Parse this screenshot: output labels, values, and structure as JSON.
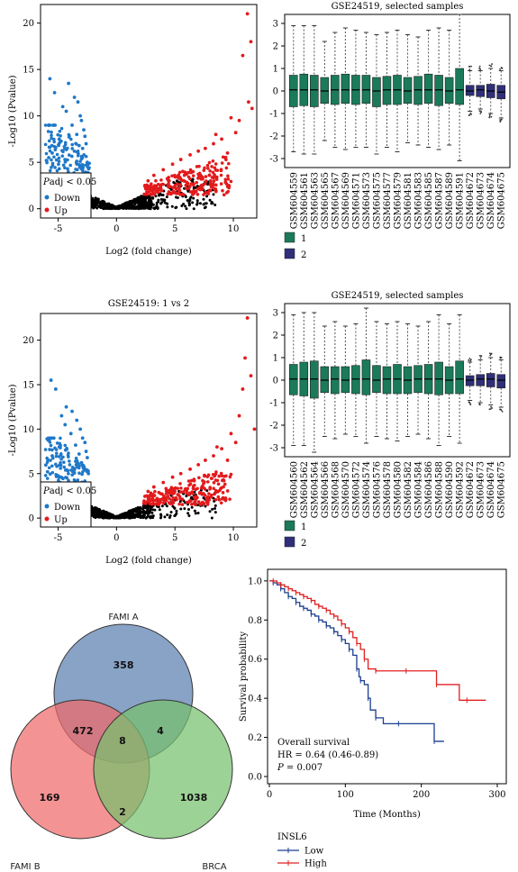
{
  "chart_data": [
    {
      "id": "volcano-1",
      "type": "scatter",
      "title": "GSE24519: 1 vs 2",
      "xlabel": "Log2 (fold change)",
      "ylabel": "-Log10 (Pvalue)",
      "xlim": [
        -6.5,
        12
      ],
      "ylim": [
        -1,
        22
      ],
      "xticks": [
        -5,
        0,
        5,
        10
      ],
      "yticks": [
        0,
        5,
        10,
        15,
        20
      ],
      "legend": {
        "title_italic": "P",
        "title_rest": "adj < 0.05",
        "entries": [
          {
            "name": "Down",
            "color": "#1f78c8"
          },
          {
            "name": "Up",
            "color": "#e31a1c"
          }
        ],
        "placement": "bottom-left"
      },
      "series": [
        {
          "name": "Down",
          "color": "#1f78c8",
          "x": [
            -5.7,
            -5.3,
            -4.1,
            -3.6,
            -3.3,
            -3.1,
            -3.0,
            -2.8,
            -2.7,
            -2.6,
            -4.6,
            -5.5,
            -3.4,
            -2.9,
            -4.9,
            -5.8,
            -3.8,
            -2.5,
            -3.2,
            -4.3
          ],
          "y": [
            14.0,
            12.5,
            13.5,
            12.0,
            11.5,
            10.0,
            9.5,
            8.5,
            7.8,
            7.0,
            11.0,
            6.0,
            8.0,
            6.5,
            7.5,
            5.5,
            9.0,
            5.0,
            6.8,
            10.5
          ]
        },
        {
          "name": "Up",
          "color": "#e31a1c",
          "x": [
            11.2,
            11.5,
            10.8,
            11.3,
            11.6,
            10.5,
            9.8,
            10.2,
            9.0,
            8.3,
            7.6,
            7.0,
            6.3,
            5.5,
            4.8,
            4.0,
            3.2,
            2.7,
            8.5,
            9.5
          ],
          "y": [
            21.0,
            18.0,
            16.5,
            11.5,
            10.8,
            9.5,
            9.8,
            8.2,
            7.5,
            7.0,
            6.5,
            6.2,
            5.8,
            5.3,
            4.8,
            4.2,
            3.6,
            3.0,
            8.0,
            6.0
          ]
        }
      ]
    },
    {
      "id": "box-1",
      "type": "box",
      "title": "GSE24519, selected samples",
      "ylim": [
        -3.4,
        3.4
      ],
      "yticks": [
        -3,
        -2,
        -1,
        0,
        1,
        2,
        3
      ],
      "categories": [
        "GSM604559",
        "GSM604561",
        "GSM604563",
        "GSM604565",
        "GSM604567",
        "GSM604569",
        "GSM604571",
        "GSM604573",
        "GSM604575",
        "GSM604577",
        "GSM604579",
        "GSM604581",
        "GSM604583",
        "GSM604585",
        "GSM604587",
        "GSM604589",
        "GSM604591",
        "GSM604672",
        "GSM604673",
        "GSM604674",
        "GSM604675"
      ],
      "groups": [
        1,
        1,
        1,
        1,
        1,
        1,
        1,
        1,
        1,
        1,
        1,
        1,
        1,
        1,
        1,
        1,
        1,
        2,
        2,
        2,
        2
      ],
      "q1": [
        -0.7,
        -0.65,
        -0.7,
        -0.55,
        -0.6,
        -0.55,
        -0.6,
        -0.55,
        -0.7,
        -0.6,
        -0.6,
        -0.55,
        -0.6,
        -0.55,
        -0.65,
        -0.55,
        -0.6,
        -0.2,
        -0.25,
        -0.3,
        -0.35
      ],
      "median": [
        0.05,
        0.05,
        0.05,
        0.0,
        0.05,
        0.05,
        0.05,
        0.05,
        0.0,
        0.05,
        0.05,
        0.0,
        0.05,
        0.05,
        0.05,
        0.0,
        0.05,
        0.0,
        0.05,
        0.0,
        -0.05
      ],
      "q3": [
        0.7,
        0.75,
        0.7,
        0.6,
        0.7,
        0.75,
        0.7,
        0.7,
        0.6,
        0.65,
        0.7,
        0.6,
        0.65,
        0.75,
        0.7,
        0.6,
        1.0,
        0.25,
        0.25,
        0.3,
        0.25
      ],
      "whisker_low": [
        -2.7,
        -2.8,
        -2.8,
        -2.2,
        -2.5,
        -2.6,
        -2.5,
        -2.5,
        -2.8,
        -2.5,
        -2.7,
        -2.3,
        -2.4,
        -2.5,
        -2.6,
        -2.4,
        -3.1,
        -0.9,
        -0.8,
        -1.0,
        -1.2
      ],
      "whisker_high": [
        2.9,
        2.9,
        2.9,
        2.2,
        2.6,
        2.8,
        2.7,
        2.6,
        2.5,
        2.6,
        2.7,
        2.5,
        2.4,
        2.7,
        2.8,
        2.7,
        3.4,
        0.9,
        0.9,
        1.0,
        0.9
      ],
      "legend": [
        {
          "name": "1",
          "color": "#1a7a5a"
        },
        {
          "name": "2",
          "color": "#2f2f7a"
        }
      ]
    },
    {
      "id": "volcano-2",
      "type": "scatter",
      "title": "GSE24519: 1 vs 2",
      "xlabel": "Log2 (fold change)",
      "ylabel": "-Log10 (Pvalue)",
      "xlim": [
        -6.5,
        12
      ],
      "ylim": [
        -1,
        23
      ],
      "xticks": [
        -5,
        0,
        5,
        10
      ],
      "yticks": [
        0,
        5,
        10,
        15,
        20
      ],
      "legend": {
        "title_italic": "P",
        "title_rest": "adj < 0.05",
        "entries": [
          {
            "name": "Down",
            "color": "#1f78c8"
          },
          {
            "name": "Up",
            "color": "#e31a1c"
          }
        ],
        "placement": "bottom-left"
      },
      "series": [
        {
          "name": "Down",
          "color": "#1f78c8",
          "x": [
            -5.6,
            -5.2,
            -4.3,
            -3.8,
            -3.4,
            -3.1,
            -2.9,
            -2.7,
            -2.6,
            -2.5,
            -4.7,
            -5.5,
            -3.5,
            -3.0,
            -4.9,
            -5.9,
            -3.9,
            -2.4,
            -3.2,
            -4.4
          ],
          "y": [
            15.5,
            14.5,
            12.5,
            12.0,
            11.0,
            10.0,
            9.0,
            8.5,
            7.5,
            6.8,
            11.5,
            7.0,
            8.2,
            6.2,
            8.0,
            5.2,
            9.5,
            5.0,
            7.2,
            10.5
          ]
        },
        {
          "name": "Up",
          "color": "#e31a1c",
          "x": [
            11.2,
            11.0,
            11.5,
            10.8,
            10.5,
            11.8,
            9.8,
            10.2,
            9.0,
            8.3,
            7.6,
            7.0,
            6.3,
            5.5,
            4.8,
            4.0,
            3.2,
            2.7,
            8.6,
            9.5
          ],
          "y": [
            22.5,
            18.0,
            16.0,
            14.5,
            11.5,
            10.0,
            9.5,
            8.5,
            7.8,
            7.0,
            6.5,
            6.0,
            5.5,
            5.0,
            4.6,
            4.0,
            3.5,
            3.0,
            8.0,
            6.5
          ]
        }
      ]
    },
    {
      "id": "box-2",
      "type": "box",
      "title": "GSE24519, selected samples",
      "ylim": [
        -3.4,
        3.4
      ],
      "yticks": [
        -3,
        -2,
        -1,
        0,
        1,
        2,
        3
      ],
      "categories": [
        "GSM604560",
        "GSM604562",
        "GSM604564",
        "GSM604566",
        "GSM604568",
        "GSM604570",
        "GSM604572",
        "GSM604574",
        "GSM604576",
        "GSM604578",
        "GSM604580",
        "GSM604582",
        "GSM604584",
        "GSM604586",
        "GSM604588",
        "GSM604590",
        "GSM604592",
        "GSM604672",
        "GSM604673",
        "GSM604674",
        "GSM604675"
      ],
      "groups": [
        1,
        1,
        1,
        1,
        1,
        1,
        1,
        1,
        1,
        1,
        1,
        1,
        1,
        1,
        1,
        1,
        1,
        2,
        2,
        2,
        2
      ],
      "q1": [
        -0.65,
        -0.7,
        -0.8,
        -0.55,
        -0.6,
        -0.55,
        -0.6,
        -0.65,
        -0.55,
        -0.6,
        -0.6,
        -0.6,
        -0.55,
        -0.6,
        -0.65,
        -0.6,
        -0.6,
        -0.25,
        -0.25,
        -0.3,
        -0.35
      ],
      "median": [
        0.05,
        0.05,
        0.05,
        0.0,
        0.05,
        0.0,
        0.05,
        0.05,
        0.0,
        0.05,
        0.05,
        0.0,
        0.05,
        0.05,
        0.05,
        0.0,
        0.05,
        0.0,
        0.05,
        0.05,
        0.0
      ],
      "q3": [
        0.7,
        0.8,
        0.85,
        0.6,
        0.6,
        0.6,
        0.65,
        0.9,
        0.65,
        0.6,
        0.7,
        0.6,
        0.65,
        0.7,
        0.8,
        0.6,
        0.85,
        0.2,
        0.25,
        0.3,
        0.25
      ],
      "whisker_low": [
        -2.9,
        -2.9,
        -3.2,
        -2.5,
        -2.6,
        -2.4,
        -2.5,
        -2.8,
        -2.5,
        -2.6,
        -2.7,
        -2.5,
        -2.4,
        -2.6,
        -2.9,
        -2.5,
        -2.8,
        -0.9,
        -1.0,
        -1.1,
        -1.2
      ],
      "whisker_high": [
        2.9,
        3.0,
        3.0,
        2.4,
        2.6,
        2.4,
        2.5,
        3.2,
        2.6,
        2.5,
        2.6,
        2.5,
        2.4,
        2.6,
        2.9,
        2.5,
        2.9,
        0.8,
        0.9,
        1.0,
        0.9
      ],
      "legend": [
        {
          "name": "1",
          "color": "#1a7a5a"
        },
        {
          "name": "2",
          "color": "#2f2f7a"
        }
      ]
    },
    {
      "id": "venn",
      "type": "venn",
      "sets": [
        {
          "name": "FAMI A",
          "color": "#5b7fb0"
        },
        {
          "name": "FAMI B",
          "color": "#f06a6a"
        },
        {
          "name": "BRCA",
          "color": "#77c16d"
        }
      ],
      "regions": {
        "a_only": "358",
        "b_only": "169",
        "c_only": "1038",
        "ab": "472",
        "ac": "4",
        "bc": "2",
        "abc": "8"
      }
    },
    {
      "id": "survival",
      "type": "line",
      "xlabel": "Time (Months)",
      "ylabel": "Survival probability",
      "xlim": [
        0,
        300
      ],
      "ylim": [
        0,
        1.05
      ],
      "xticks": [
        0,
        100,
        200,
        300
      ],
      "yticks": [
        0.0,
        0.2,
        0.4,
        0.6,
        0.8,
        1.0
      ],
      "annotations": [
        "Overall survival",
        "HR = 0.64 (0.46-0.89)",
        "= 0.007"
      ],
      "annotation_p": "P",
      "legend_title": "INSL6",
      "series": [
        {
          "name": "Low",
          "color": "#1b3f8f",
          "x": [
            0,
            5,
            10,
            15,
            20,
            25,
            30,
            35,
            40,
            45,
            50,
            55,
            60,
            65,
            70,
            75,
            80,
            85,
            90,
            95,
            100,
            105,
            110,
            115,
            118,
            120,
            125,
            130,
            133,
            140,
            150,
            170,
            200,
            217,
            230
          ],
          "y": [
            1.0,
            0.99,
            0.98,
            0.96,
            0.94,
            0.92,
            0.91,
            0.89,
            0.87,
            0.86,
            0.85,
            0.83,
            0.82,
            0.8,
            0.79,
            0.77,
            0.76,
            0.74,
            0.72,
            0.7,
            0.68,
            0.65,
            0.62,
            0.55,
            0.51,
            0.49,
            0.47,
            0.4,
            0.34,
            0.3,
            0.27,
            0.27,
            0.27,
            0.18,
            0.18
          ]
        },
        {
          "name": "High",
          "color": "#e02020",
          "x": [
            0,
            5,
            10,
            15,
            20,
            25,
            30,
            35,
            40,
            45,
            50,
            55,
            60,
            65,
            70,
            75,
            80,
            85,
            90,
            95,
            100,
            105,
            110,
            115,
            120,
            125,
            130,
            140,
            150,
            180,
            200,
            220,
            250,
            260,
            285
          ],
          "y": [
            1.0,
            1.0,
            0.99,
            0.98,
            0.97,
            0.96,
            0.95,
            0.94,
            0.93,
            0.92,
            0.91,
            0.9,
            0.88,
            0.87,
            0.86,
            0.85,
            0.83,
            0.82,
            0.8,
            0.78,
            0.76,
            0.74,
            0.71,
            0.68,
            0.65,
            0.6,
            0.55,
            0.54,
            0.54,
            0.54,
            0.54,
            0.47,
            0.39,
            0.39,
            0.39
          ]
        }
      ]
    }
  ]
}
